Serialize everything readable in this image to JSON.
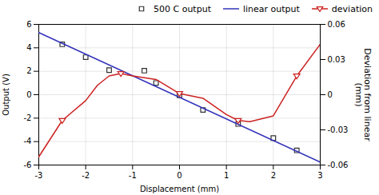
{
  "chart_data": {
    "type": "scatter",
    "xlabel": "Displacement (mm)",
    "ylabel": "Output (V)",
    "y2label": "Deviation from linear\n(mm)",
    "xlim": [
      -3,
      3
    ],
    "ylim": [
      -6,
      6
    ],
    "y2lim": [
      -0.06,
      0.06
    ],
    "xticks": [
      -3,
      -2,
      -1,
      0,
      1,
      2,
      3
    ],
    "yticks": [
      -6,
      -4,
      -2,
      0,
      2,
      4,
      6
    ],
    "y2ticks": [
      -0.06,
      -0.03,
      0,
      0.03,
      0.06
    ],
    "grid": true,
    "legend": "upper right",
    "series": [
      {
        "name": "500 C output",
        "type": "scatter",
        "marker": "square",
        "color": "#333333",
        "x": [
          -2.5,
          -2.0,
          -1.5,
          -0.75,
          -0.5,
          0.0,
          0.5,
          1.25,
          2.0,
          2.5
        ],
        "values": [
          4.3,
          3.2,
          2.1,
          2.05,
          1.0,
          -0.05,
          -1.3,
          -2.5,
          -3.7,
          -4.75
        ]
      },
      {
        "name": "linear output",
        "type": "line",
        "color": "#3333bb",
        "x": [
          -3.0,
          3.0
        ],
        "values": [
          5.3,
          -5.75
        ]
      },
      {
        "name": "deviation",
        "type": "line",
        "axis": "y2",
        "marker": "triangle-down",
        "color": "#cc2222",
        "x": [
          -3.0,
          -2.5,
          -2.0,
          -1.75,
          -1.5,
          -1.25,
          -1.0,
          -0.5,
          0.0,
          0.5,
          1.0,
          1.25,
          1.5,
          2.0,
          2.5,
          3.0
        ],
        "values": [
          -0.053,
          -0.022,
          -0.005,
          0.008,
          0.016,
          0.018,
          0.016,
          0.013,
          0.001,
          -0.003,
          -0.017,
          -0.022,
          -0.023,
          -0.018,
          0.016,
          0.043
        ]
      },
      {
        "type": "scatter",
        "axis": "y2",
        "marker": "triangle-down",
        "color": "#cc2222",
        "x": [
          -2.5,
          -1.25,
          0.0,
          1.25,
          2.5
        ],
        "values": [
          -0.022,
          0.018,
          0.001,
          -0.022,
          0.016
        ]
      }
    ]
  }
}
